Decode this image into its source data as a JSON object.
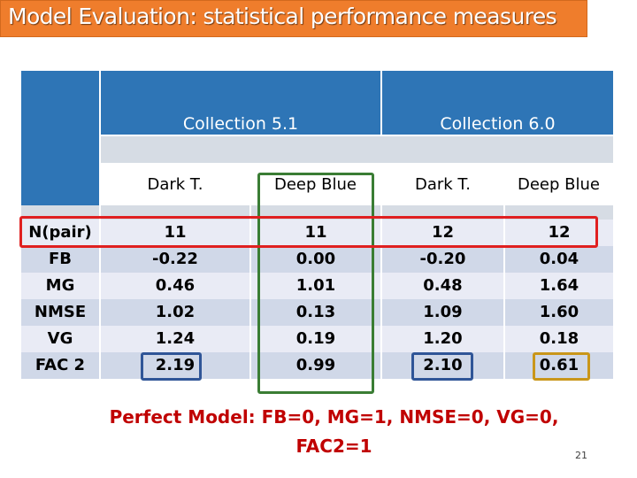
{
  "title": "Model Evaluation: statistical performance measures",
  "table": {
    "collections": [
      "Collection 5.1",
      "Collection 6.0"
    ],
    "sub_headers": [
      "Dark T.",
      "Deep Blue",
      "Dark T.",
      "Deep Blue"
    ],
    "rows": [
      {
        "label": "N(pair)",
        "values": [
          "11",
          "11",
          "12",
          "12"
        ]
      },
      {
        "label": "FB",
        "values": [
          "-0.22",
          "0.00",
          "-0.20",
          "0.04"
        ]
      },
      {
        "label": "MG",
        "values": [
          "0.46",
          "1.01",
          "0.48",
          "1.64"
        ]
      },
      {
        "label": "NMSE",
        "values": [
          "1.02",
          "0.13",
          "1.09",
          "1.60"
        ]
      },
      {
        "label": "VG",
        "values": [
          "1.24",
          "0.19",
          "1.20",
          "0.18"
        ]
      },
      {
        "label": "FAC 2",
        "values": [
          "2.19",
          "0.99",
          "2.10",
          "0.61"
        ]
      }
    ]
  },
  "footer": {
    "line1": "Perfect Model: FB=0, MG=1, NMSE=0, VG=0,",
    "line2": "FAC2=1"
  },
  "page_number": "21",
  "colors": {
    "title_bar": "#ef7d2c",
    "header_blue": "#2e75b6",
    "highlight_red": "#e02020",
    "highlight_green": "#3a7d34",
    "highlight_blue": "#2f5597",
    "highlight_gold": "#c9961a",
    "footer_red": "#c00000"
  }
}
